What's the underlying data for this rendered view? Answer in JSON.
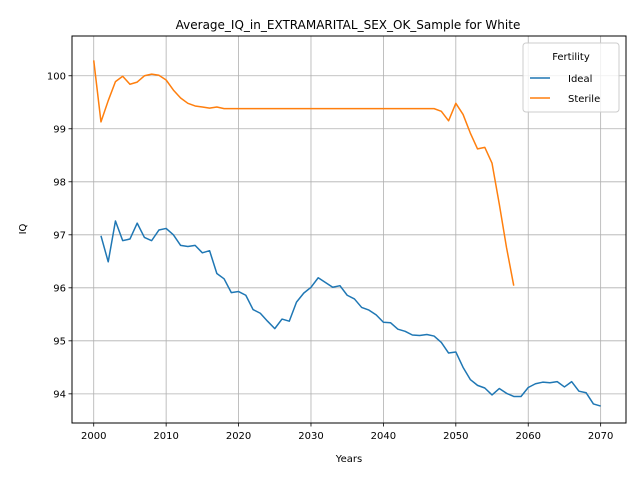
{
  "chart_data": {
    "type": "line",
    "title": "Average_IQ_in_EXTRAMARITAL_SEX_OK_Sample for White",
    "xlabel": "Years",
    "ylabel": "IQ",
    "xlim": [
      1997,
      2073.5
    ],
    "ylim": [
      93.45,
      100.75
    ],
    "xticks": [
      2000,
      2010,
      2020,
      2030,
      2040,
      2050,
      2060,
      2070
    ],
    "yticks": [
      94,
      95,
      96,
      97,
      98,
      99,
      100
    ],
    "grid": true,
    "legend": {
      "title": "Fertility",
      "placement": "upper right"
    },
    "series": [
      {
        "name": "Ideal",
        "color": "#1f77b4",
        "x": [
          2001,
          2002,
          2003,
          2004,
          2005,
          2006,
          2007,
          2008,
          2009,
          2010,
          2011,
          2012,
          2013,
          2014,
          2015,
          2016,
          2017,
          2018,
          2019,
          2020,
          2021,
          2022,
          2023,
          2024,
          2025,
          2026,
          2027,
          2028,
          2029,
          2030,
          2031,
          2032,
          2033,
          2034,
          2035,
          2036,
          2037,
          2038,
          2039,
          2040,
          2041,
          2042,
          2043,
          2044,
          2045,
          2046,
          2047,
          2048,
          2049,
          2050,
          2051,
          2052,
          2053,
          2054,
          2055,
          2056,
          2057,
          2058,
          2059,
          2060,
          2061,
          2062,
          2063,
          2064,
          2065,
          2066,
          2067,
          2068,
          2069,
          2070
        ],
        "y": [
          96.98,
          96.49,
          97.26,
          96.89,
          96.92,
          97.22,
          96.95,
          96.89,
          97.09,
          97.12,
          97.0,
          96.8,
          96.78,
          96.8,
          96.66,
          96.7,
          96.27,
          96.17,
          95.91,
          95.93,
          95.86,
          95.59,
          95.52,
          95.37,
          95.23,
          95.41,
          95.37,
          95.73,
          95.9,
          96.01,
          96.19,
          96.1,
          96.01,
          96.04,
          95.86,
          95.79,
          95.63,
          95.58,
          95.49,
          95.35,
          95.34,
          95.22,
          95.18,
          95.11,
          95.1,
          95.12,
          95.09,
          94.97,
          94.77,
          94.79,
          94.5,
          94.27,
          94.16,
          94.11,
          93.98,
          94.1,
          94.01,
          93.95,
          93.95,
          94.12,
          94.19,
          94.22,
          94.21,
          94.23,
          94.13,
          94.23,
          94.05,
          94.02,
          93.81,
          93.77
        ]
      },
      {
        "name": "Sterile",
        "color": "#ff7f0e",
        "x": [
          2000,
          2001,
          2002,
          2003,
          2004,
          2005,
          2006,
          2007,
          2008,
          2009,
          2010,
          2011,
          2012,
          2013,
          2014,
          2015,
          2016,
          2017,
          2018,
          2019,
          2020,
          2021,
          2022,
          2023,
          2024,
          2025,
          2026,
          2027,
          2028,
          2029,
          2030,
          2031,
          2032,
          2033,
          2034,
          2035,
          2036,
          2037,
          2038,
          2039,
          2040,
          2041,
          2042,
          2043,
          2044,
          2045,
          2046,
          2047,
          2048,
          2049,
          2050,
          2051,
          2052,
          2053,
          2054,
          2055,
          2056,
          2057,
          2058
        ],
        "y": [
          100.29,
          99.13,
          99.53,
          99.89,
          99.99,
          99.84,
          99.88,
          100.0,
          100.03,
          100.01,
          99.92,
          99.73,
          99.58,
          99.48,
          99.43,
          99.41,
          99.39,
          99.41,
          99.38,
          99.38,
          99.38,
          99.38,
          99.38,
          99.38,
          99.38,
          99.38,
          99.38,
          99.38,
          99.38,
          99.38,
          99.38,
          99.38,
          99.38,
          99.38,
          99.38,
          99.38,
          99.38,
          99.38,
          99.38,
          99.38,
          99.38,
          99.38,
          99.38,
          99.38,
          99.38,
          99.38,
          99.38,
          99.38,
          99.33,
          99.15,
          99.48,
          99.27,
          98.92,
          98.62,
          98.65,
          98.35,
          97.58,
          96.76,
          96.04
        ]
      }
    ]
  }
}
